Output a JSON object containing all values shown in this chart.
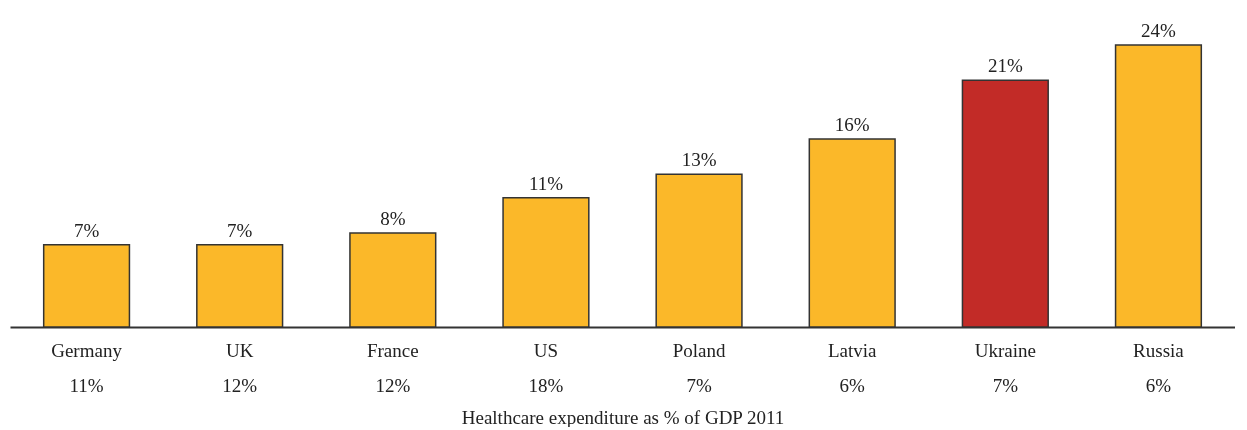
{
  "chart_data": {
    "type": "bar",
    "xlabel": "Healthcare expenditure as % of GDP 2011",
    "categories": [
      "Germany",
      "UK",
      "France",
      "US",
      "Poland",
      "Latvia",
      "Ukraine",
      "Russia"
    ],
    "values": [
      7,
      7,
      8,
      11,
      13,
      16,
      21,
      24
    ],
    "value_labels": [
      "7%",
      "7%",
      "8%",
      "11%",
      "13%",
      "16%",
      "21%",
      "24%"
    ],
    "colors": [
      "#fbb829",
      "#fbb829",
      "#fbb829",
      "#fbb829",
      "#fbb829",
      "#fbb829",
      "#c22b27",
      "#fbb829"
    ],
    "annotations": [
      "11%",
      "12%",
      "12%",
      "18%",
      "7%",
      "6%",
      "7%",
      "6%"
    ],
    "grid": false
  }
}
